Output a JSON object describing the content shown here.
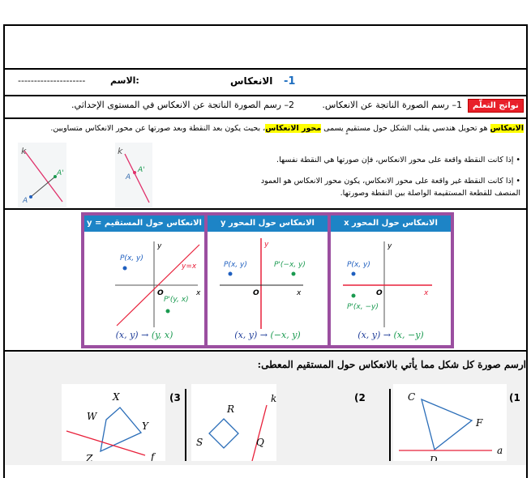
{
  "header": {
    "number": "-1",
    "title": "الانعكاس",
    "name_label": "الاسم:",
    "name_blank": "---------------------"
  },
  "outcomes": {
    "badge": "نواتج التعلّم",
    "item1": "1– رسم الصورة الناتجة عن الانعكاس.",
    "item2": "2– رسم الصورة الناتجة عن الانعكاس في المستوى الإحداثي."
  },
  "definition": {
    "term": "الانعكاس",
    "text1": " هو تحويل هندسي يقلب الشكل حول مستقيمٍ يسمى ",
    "term2": "محور الانعكاس",
    "text2": "، بحيث يكون بعد النقطة وبعد صورتها عن محور الانعكاس متساويين."
  },
  "bullets": [
    "إذا كانت النقطة واقعة على محور الانعكاس، فإن صورتها هي النقطة نفسها.",
    "إذا كانت النقطة غير واقعة على محور الانعكاس، يكون محور الانعكاس هو العمود المنصف للقطعة المستقيمة الواصلة بين النقطة وصورتها."
  ],
  "figures": {
    "line_label": "k",
    "point": "A",
    "image": "A'"
  },
  "reflection_table": [
    {
      "title": "الانعكاس حول المحور x",
      "p": "P(x, y)",
      "pp": "P'(x, −y)",
      "from": "(x, y) →",
      "to": "(x, −y)",
      "axis_x": "x",
      "axis_y": "y",
      "origin": "O"
    },
    {
      "title": "الانعكاس حول المحور y",
      "p": "P(x, y)",
      "pp": "P'(−x, y)",
      "from": "(x, y) →",
      "to": "(−x, y)",
      "axis_x": "x",
      "axis_y": "y",
      "origin": "O"
    },
    {
      "title": "الانعكاس حول المستقيم y = x",
      "p": "P(x, y)",
      "pp": "P'(y, x)",
      "from": "(x, y) →",
      "to": "(y, x)",
      "line": "y=x",
      "axis_x": "x",
      "axis_y": "y",
      "origin": "O"
    }
  ],
  "exercise": {
    "heading": "ارسم صورة كل شكل مما يأتي بالانعكاس حول المستقيم المعطى:",
    "problems": [
      {
        "num": "(1",
        "labels": [
          "C",
          "F",
          "D",
          "a"
        ]
      },
      {
        "num": "(2",
        "labels": [
          "R",
          "S",
          "Q",
          "k"
        ]
      },
      {
        "num": "(3",
        "labels": [
          "X",
          "W",
          "Y",
          "Z",
          "f"
        ]
      }
    ]
  },
  "colors": {
    "badge": "#e8202a",
    "panel_header": "#1d84c6",
    "card_border": "#9b4fa0",
    "highlight": "#ffff00",
    "reflect_line": "#e8203a",
    "point": "#1f5fbf",
    "image_point": "#1a9a50"
  }
}
